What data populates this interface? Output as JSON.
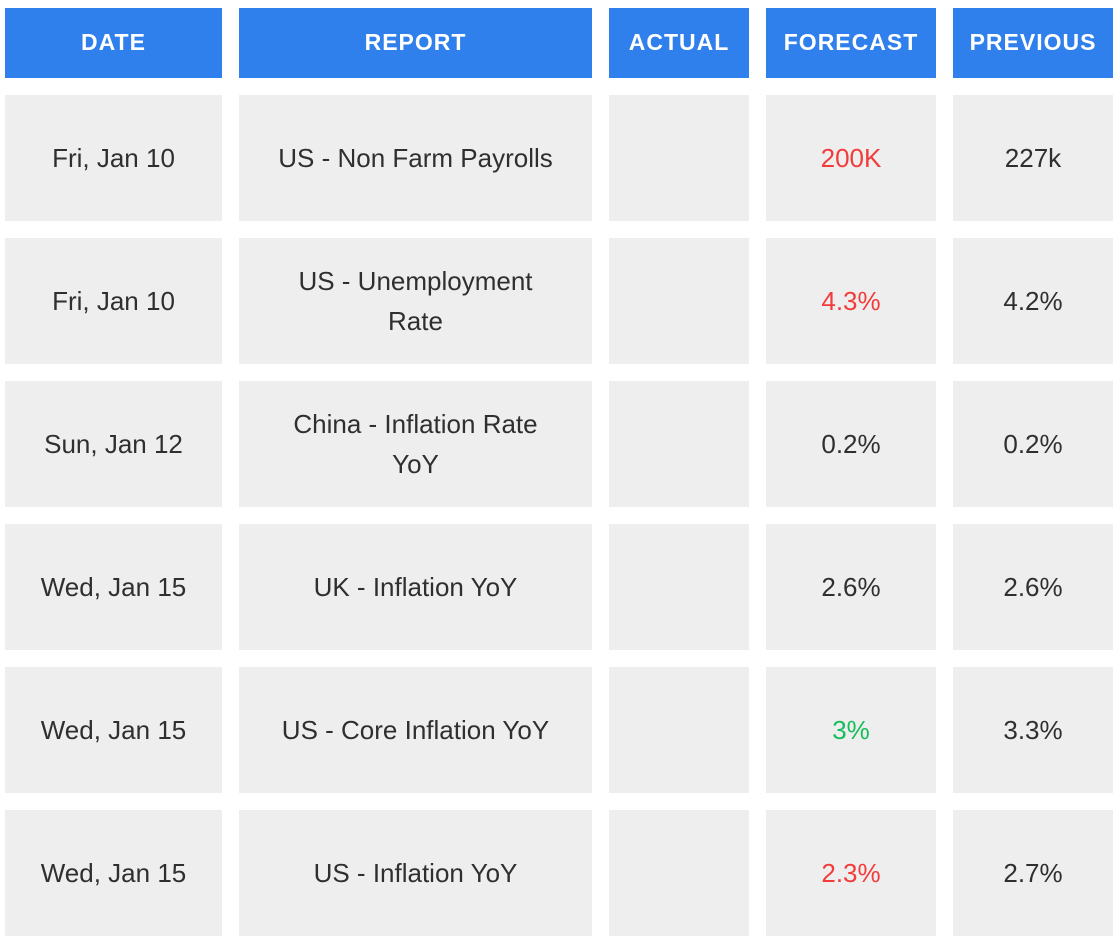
{
  "colors": {
    "header_bg": "#2F80ED",
    "header_text": "#FFFFFF",
    "cell_bg": "#EEEEEE",
    "body_text": "#2F2F2F",
    "red": "#F23B3B",
    "green": "#16BD5A",
    "neutral": "#2F2F2F"
  },
  "chart_data": {
    "type": "table",
    "columns": [
      "DATE",
      "REPORT",
      "ACTUAL",
      "FORECAST",
      "PREVIOUS"
    ],
    "rows": [
      [
        "Fri, Jan 10",
        "US - Non Farm Payrolls",
        "",
        "200K",
        "227k"
      ],
      [
        "Fri, Jan 10",
        "US - Unemployment\nRate",
        "",
        "4.3%",
        "4.2%"
      ],
      [
        "Sun, Jan 12",
        "China - Inflation Rate\nYoY",
        "",
        "0.2%",
        "0.2%"
      ],
      [
        "Wed, Jan 15",
        "UK - Inflation YoY",
        "",
        "2.6%",
        "2.6%"
      ],
      [
        "Wed, Jan 15",
        "US - Core Inflation YoY",
        "",
        "3%",
        "3.3%"
      ],
      [
        "Wed, Jan 15",
        "US - Inflation YoY",
        "",
        "2.3%",
        "2.7%"
      ]
    ],
    "forecast_colors": [
      "red",
      "red",
      "neutral",
      "neutral",
      "green",
      "red"
    ],
    "layout": {
      "grid": "off",
      "header_style": "solid-blue-blocks",
      "cell_style": "light-gray-blocks-with-white-gaps"
    }
  }
}
